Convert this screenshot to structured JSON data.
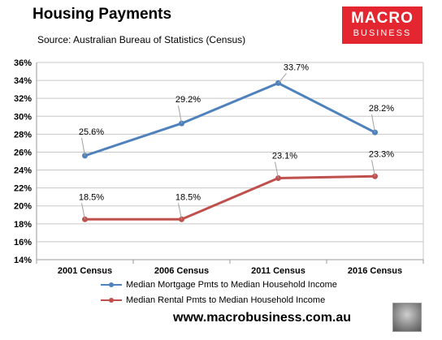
{
  "header": {
    "title": "Housing Payments",
    "subtitle": "Source: Australian Bureau of Statistics (Census)"
  },
  "logo": {
    "line1": "MACRO",
    "line2": "BUSINESS",
    "color": "#e3262f"
  },
  "footer": {
    "url": "www.macrobusiness.com.au",
    "mascot_icon": "wolf-icon"
  },
  "chart_data": {
    "type": "line",
    "title": "Housing Payments",
    "categories": [
      "2001 Census",
      "2006 Census",
      "2011 Census",
      "2016 Census"
    ],
    "series": [
      {
        "name": "Median Mortgage Pmts to Median Household Income",
        "values": [
          25.6,
          29.2,
          33.7,
          28.2
        ],
        "labels": [
          "25.6%",
          "29.2%",
          "33.7%",
          "28.2%"
        ],
        "color": "#4f81bd"
      },
      {
        "name": "Median Rental Pmts to Median Household Income",
        "values": [
          18.5,
          18.5,
          23.1,
          23.3
        ],
        "labels": [
          "18.5%",
          "18.5%",
          "23.1%",
          "23.3%"
        ],
        "color": "#c0504d"
      }
    ],
    "ylim": [
      14,
      36
    ],
    "yticks": [
      "14%",
      "16%",
      "18%",
      "20%",
      "22%",
      "24%",
      "26%",
      "28%",
      "30%",
      "32%",
      "34%",
      "36%"
    ],
    "grid": true,
    "legend": "bottom"
  }
}
